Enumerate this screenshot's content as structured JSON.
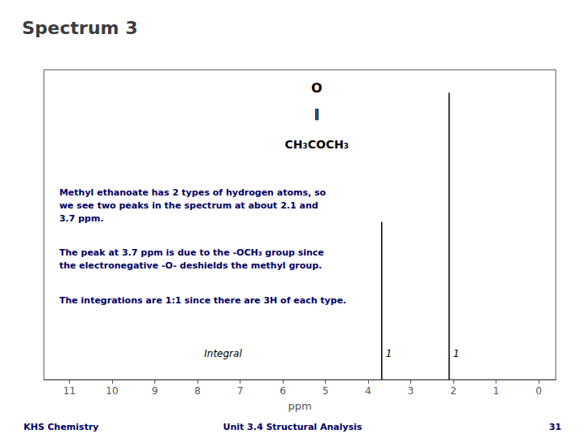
{
  "chart_data": {
    "type": "stem",
    "title": "Spectrum 3",
    "xlabel": "ppm",
    "x": [
      3.68,
      2.1
    ],
    "values": [
      0.55,
      1.0
    ],
    "color": "#000000",
    "xlim": [
      11.6,
      -0.4
    ],
    "xticks": [
      11,
      10,
      9,
      8,
      7,
      6,
      5,
      4,
      3,
      2,
      1,
      0
    ],
    "ylim": [
      0,
      1.08
    ],
    "tick_labels": "x",
    "grid": false,
    "integral_label": "Integral",
    "integrals": [
      1,
      1
    ],
    "annotations": {
      "formula": [
        "O",
        "‖",
        "CH₃COCH₃"
      ],
      "paragraphs": [
        "Methyl ethanoate has 2 types of hydrogen atoms, so\nwe see two peaks in the spectrum at about 2.1 and\n3.7 ppm.",
        "The peak at 3.7 ppm is due to the -OCH₃ group since\nthe electronegative -O- deshields the methyl group.",
        "The integrations are 1:1 since there are 3H of each type."
      ],
      "footer": [
        "KHS Chemistry",
        "Unit 3.4 Structural Analysis",
        "31"
      ]
    }
  }
}
